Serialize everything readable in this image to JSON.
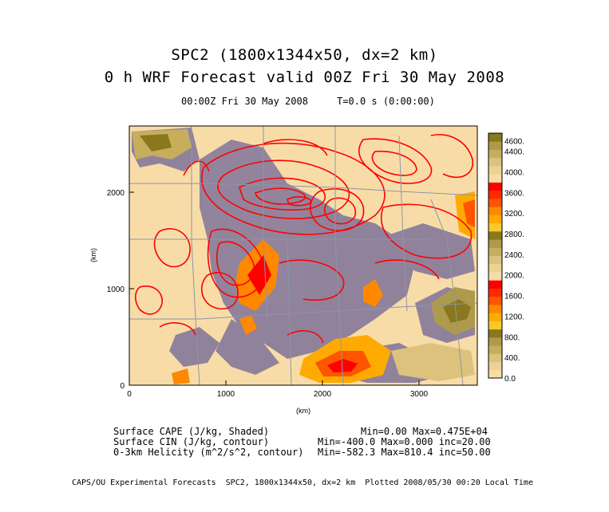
{
  "title_line1": "SPC2 (1800x1344x50, dx=2 km)",
  "title_line2": "0 h WRF Forecast valid 00Z Fri 30 May 2008",
  "subtitle": "00:00Z Fri 30 May 2008     T=0.0 s (0:00:00)",
  "x_axis_label": "(km)",
  "y_axis_label": "(km)",
  "x_ticks": [
    "0",
    "1000",
    "2000",
    "3000"
  ],
  "y_ticks": [
    "0",
    "1000",
    "2000"
  ],
  "colorbar": {
    "labels": [
      "4600.",
      "4400.",
      "4000.",
      "3600.",
      "3200.",
      "2800.",
      "2400.",
      "2000.",
      "1600.",
      "1200.",
      "800.",
      "400.",
      "0.0"
    ],
    "colors": [
      "#f8dca8",
      "#ecd294",
      "#dcc27c",
      "#c8ae5c",
      "#ae9a4c",
      "#8a781c",
      "#fac82c",
      "#ffaa00",
      "#ff8800",
      "#ff5400",
      "#ff2a00",
      "#ff0000",
      "#f8dca8",
      "#ecd294",
      "#dcc27c",
      "#c8ae5c",
      "#ae9a4c",
      "#8a781c",
      "#fac82c",
      "#ffaa00",
      "#ff8800",
      "#ff5400",
      "#ff2a00",
      "#ff0000",
      "#f8dca8",
      "#ecd294",
      "#dcc27c",
      "#c8ae5c",
      "#ae9a4c",
      "#8a781c"
    ]
  },
  "legend": [
    {
      "label": "Surface CAPE (J/kg, Shaded)",
      "stats": "Min=0.00 Max=0.475E+04"
    },
    {
      "label": "Surface CIN (J/kg, contour)",
      "stats": "Min=-400.0 Max=0.000 inc=20.00"
    },
    {
      "label": "0-3km Helicity (m^2/s^2, contour)",
      "stats": "Min=-582.3 Max=810.4 inc=50.00"
    }
  ],
  "footer": "CAPS/OU Experimental Forecasts  SPC2, 1800x1344x50, dx=2 km  Plotted 2008/05/30 00:20 Local Time",
  "colors": {
    "cape_base": "#f8dca8",
    "cin_contour": "#8c7e9c",
    "helicity_contour": "#ff0000",
    "map_outline": "#8c96a6"
  }
}
